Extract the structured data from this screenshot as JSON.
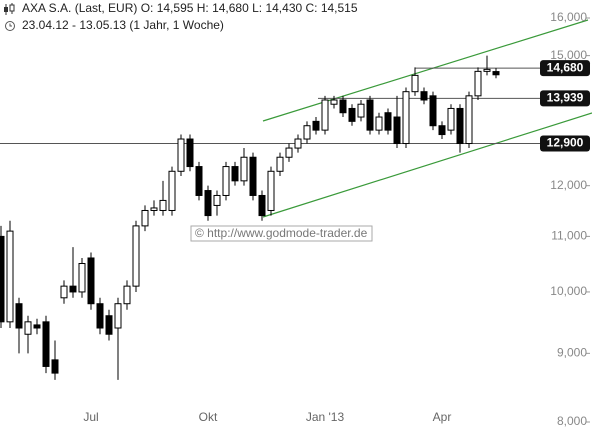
{
  "chart_data": {
    "type": "candlestick",
    "title": "AXA S.A. (Last, EUR)  O: 14,595  H: 14,680  L: 14,430  C: 14,515",
    "subtitle": "23.04.12 - 13.05.13 (1 Jahr, 1 Woche)",
    "watermark": "© http://www.godmode-trader.de",
    "categories": [
      null,
      null,
      null,
      null,
      null,
      null,
      null,
      null,
      null,
      null,
      "Jul",
      null,
      null,
      null,
      null,
      null,
      null,
      null,
      null,
      null,
      null,
      null,
      null,
      "Okt",
      null,
      null,
      null,
      null,
      null,
      null,
      null,
      null,
      null,
      null,
      null,
      null,
      "Jan '13",
      null,
      null,
      null,
      null,
      null,
      null,
      null,
      null,
      null,
      null,
      null,
      null,
      "Apr",
      null,
      null,
      null,
      null,
      null,
      null
    ],
    "open": [
      11000,
      9500,
      9800,
      9300,
      9450,
      9500,
      8900,
      9900,
      10100,
      10000,
      10600,
      9800,
      9600,
      9400,
      9800,
      10100,
      11200,
      11500,
      11500,
      11500,
      12300,
      13000,
      12400,
      11900,
      11600,
      11800,
      12400,
      12100,
      12600,
      11800,
      11500,
      12300,
      12600,
      12800,
      13000,
      13400,
      13200,
      13800,
      13900,
      13700,
      13500,
      13900,
      13200,
      13600,
      13500,
      12900,
      14100,
      14100,
      14000,
      13300,
      13200,
      13700,
      12900,
      14000,
      14600,
      14595
    ],
    "high": [
      11200,
      11300,
      9900,
      9600,
      9550,
      9600,
      9200,
      10200,
      10800,
      10600,
      10700,
      9900,
      9700,
      9900,
      10200,
      11300,
      11600,
      11700,
      12100,
      12400,
      13100,
      13100,
      12500,
      12000,
      11900,
      12500,
      12500,
      12800,
      12700,
      11900,
      12400,
      12700,
      12900,
      13100,
      13400,
      13500,
      14000,
      14000,
      14000,
      13800,
      13900,
      14000,
      13600,
      13700,
      14000,
      14200,
      14700,
      14200,
      14100,
      13400,
      13800,
      13800,
      14100,
      14700,
      15000,
      14680
    ],
    "low": [
      9400,
      9400,
      9000,
      9000,
      9300,
      8700,
      8600,
      9800,
      9900,
      9900,
      9700,
      9300,
      9200,
      8600,
      9700,
      10000,
      11100,
      11400,
      11400,
      11400,
      12200,
      12300,
      11700,
      11300,
      11400,
      11700,
      12000,
      12000,
      11700,
      11300,
      11400,
      12200,
      12500,
      12700,
      12900,
      13100,
      13100,
      13700,
      13500,
      13300,
      13400,
      13100,
      13100,
      13100,
      12800,
      12800,
      14000,
      13800,
      13200,
      13000,
      13100,
      12700,
      12800,
      13900,
      14500,
      14430
    ],
    "close": [
      9500,
      11100,
      9400,
      9500,
      9400,
      8800,
      8700,
      10100,
      10000,
      10500,
      9800,
      9400,
      9300,
      9800,
      10100,
      11200,
      11500,
      11550,
      11700,
      12300,
      13000,
      12400,
      11800,
      11400,
      11800,
      12400,
      12100,
      12600,
      11800,
      11400,
      12300,
      12600,
      12800,
      13000,
      13300,
      13200,
      13900,
      13900,
      13600,
      13400,
      13800,
      13200,
      13500,
      13200,
      12900,
      14100,
      14500,
      13900,
      13300,
      13100,
      13700,
      12900,
      14000,
      14600,
      14650,
      14515
    ],
    "ylim": [
      8000,
      16000
    ],
    "log": true,
    "yticks": [
      {
        "value": 16000,
        "label": "16,000"
      },
      {
        "value": 15000,
        "label": "15,000"
      },
      {
        "value": 12000,
        "label": "12,000"
      },
      {
        "value": 11000,
        "label": "11,000"
      },
      {
        "value": 10000,
        "label": "10,000"
      },
      {
        "value": 9000,
        "label": "9,000"
      },
      {
        "value": 8000,
        "label": "8,000"
      }
    ],
    "levels": [
      {
        "value": 14680,
        "label": "14,680"
      },
      {
        "value": 13939,
        "label": "13,939"
      },
      {
        "value": 12900,
        "label": "12,900"
      }
    ],
    "up_color": "#ffffff",
    "down_color": "#000000",
    "trend_color": "#3a9a3a"
  }
}
